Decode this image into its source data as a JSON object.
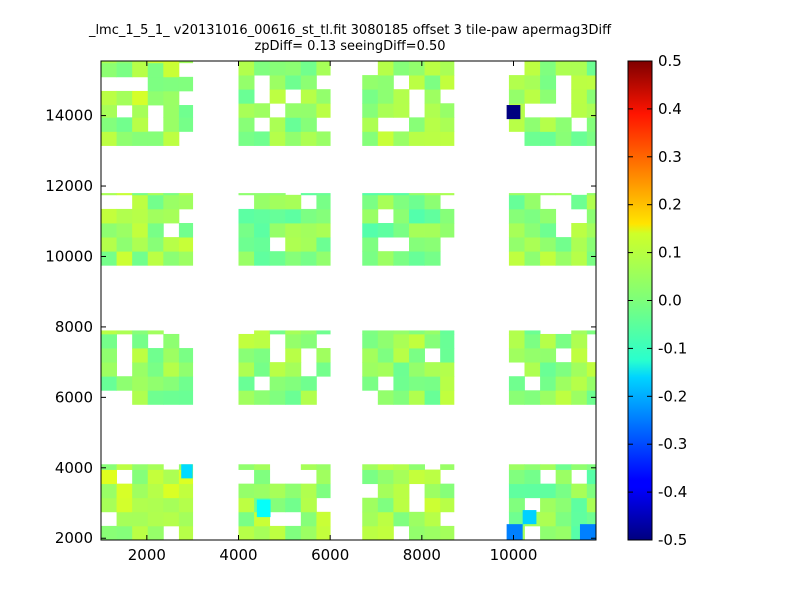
{
  "chart_data": {
    "type": "heatmap",
    "title": "_lmc_1_5_1_ v20131016_00616_st_tl.fit 3080185 offset 3 tile-paw apermag3Diff",
    "subtitle": "zpDiff= 0.13 seeingDiff=0.50",
    "xlabel": "",
    "ylabel": "",
    "xlim": [
      1000,
      11800
    ],
    "ylim": [
      1950,
      15550
    ],
    "xticks": [
      "2000",
      "4000",
      "6000",
      "8000",
      "10000"
    ],
    "yticks": [
      "2000",
      "4000",
      "6000",
      "8000",
      "10000",
      "12000",
      "14000"
    ],
    "cell_size": [
      340,
      400
    ],
    "colorbar": {
      "colormap": "jet",
      "vmin": -0.5,
      "vmax": 0.5,
      "ticks": [
        "-0.5",
        "-0.4",
        "-0.3",
        "-0.2",
        "-0.1",
        "0.0",
        "0.1",
        "0.2",
        "0.3",
        "0.4",
        "0.5"
      ]
    },
    "tiles": [
      {
        "x_range": [
          1000,
          3000
        ],
        "y_range": [
          14300,
          15550
        ],
        "value": 0.04
      },
      {
        "x_range": [
          1000,
          3000
        ],
        "y_range": [
          13150,
          14300
        ],
        "value": 0.03
      },
      {
        "x_range": [
          4000,
          6000
        ],
        "y_range": [
          13150,
          15550
        ],
        "value": 0.02
      },
      {
        "x_range": [
          6700,
          8700
        ],
        "y_range": [
          13150,
          15550
        ],
        "value": 0.03
      },
      {
        "x_range": [
          9900,
          11800
        ],
        "y_range": [
          13150,
          15550
        ],
        "value": 0.02
      },
      {
        "x_range": [
          1000,
          3000
        ],
        "y_range": [
          9750,
          11800
        ],
        "value": 0.03
      },
      {
        "x_range": [
          4000,
          6000
        ],
        "y_range": [
          9750,
          11800
        ],
        "value": 0.01
      },
      {
        "x_range": [
          6700,
          8700
        ],
        "y_range": [
          9750,
          11800
        ],
        "value": 0.0
      },
      {
        "x_range": [
          9900,
          11800
        ],
        "y_range": [
          9750,
          11800
        ],
        "value": 0.02
      },
      {
        "x_range": [
          1000,
          3000
        ],
        "y_range": [
          5800,
          7900
        ],
        "value": 0.02
      },
      {
        "x_range": [
          4000,
          6000
        ],
        "y_range": [
          5800,
          7900
        ],
        "value": 0.02
      },
      {
        "x_range": [
          6700,
          8700
        ],
        "y_range": [
          5800,
          7900
        ],
        "value": 0.02
      },
      {
        "x_range": [
          9900,
          11800
        ],
        "y_range": [
          5800,
          7900
        ],
        "value": 0.02
      },
      {
        "x_range": [
          1000,
          3000
        ],
        "y_range": [
          1950,
          4100
        ],
        "value": 0.05
      },
      {
        "x_range": [
          4000,
          6000
        ],
        "y_range": [
          1950,
          4100
        ],
        "value": 0.03
      },
      {
        "x_range": [
          6700,
          8700
        ],
        "y_range": [
          1950,
          4100
        ],
        "value": 0.04
      },
      {
        "x_range": [
          9900,
          11800
        ],
        "y_range": [
          1950,
          4100
        ],
        "value": 0.0
      },
      {
        "x_range": [
          9850,
          10150
        ],
        "y_range": [
          13900,
          14300
        ],
        "value": -0.5
      },
      {
        "x_range": [
          9850,
          10200
        ],
        "y_range": [
          1950,
          2400
        ],
        "value": -0.25
      },
      {
        "x_range": [
          10200,
          10500
        ],
        "y_range": [
          2400,
          2800
        ],
        "value": -0.17
      },
      {
        "x_range": [
          11450,
          11800
        ],
        "y_range": [
          1950,
          2400
        ],
        "value": -0.25
      },
      {
        "x_range": [
          2750,
          3000
        ],
        "y_range": [
          3700,
          4100
        ],
        "value": -0.16
      },
      {
        "x_range": [
          4400,
          4700
        ],
        "y_range": [
          2600,
          3100
        ],
        "value": -0.12
      }
    ]
  }
}
